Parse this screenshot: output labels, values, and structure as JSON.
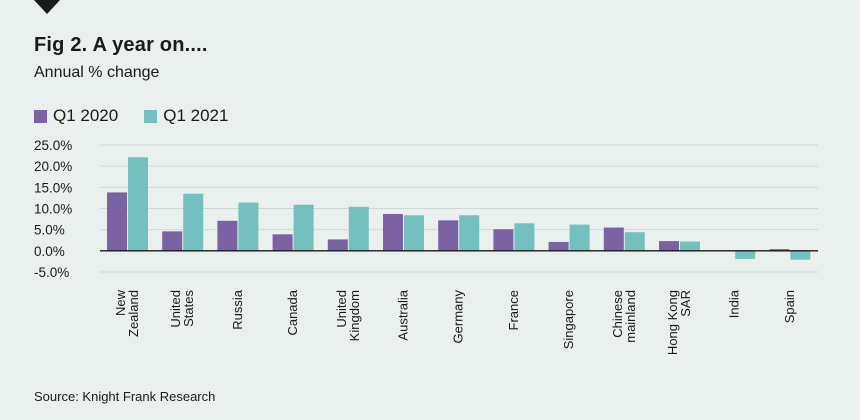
{
  "header": {
    "title": "Fig 2. A year on....",
    "subtitle": "Annual % change"
  },
  "source": "Source: Knight Frank Research",
  "colors": {
    "background": "#e9f0ed",
    "q1_2020": "#7b62a3",
    "q1_2021": "#73c0bf"
  },
  "chart_data": {
    "type": "bar",
    "title": "Fig 2. A year on....",
    "subtitle": "Annual % change",
    "legend_position": "top-left",
    "grid": true,
    "ylim": [
      -5,
      25
    ],
    "yticks": [
      "25.0%",
      "20.0%",
      "15.0%",
      "10.0%",
      "5.0%",
      "0.0%",
      "-5.0%"
    ],
    "ytick_values": [
      25,
      20,
      15,
      10,
      5,
      0,
      -5
    ],
    "categories": [
      [
        "New",
        "Zealand"
      ],
      [
        "United",
        "States"
      ],
      [
        "Russia"
      ],
      [
        "Canada"
      ],
      [
        "United",
        "Kingdom"
      ],
      [
        "Australia"
      ],
      [
        "Germany"
      ],
      [
        "France"
      ],
      [
        "Singapore"
      ],
      [
        "Chinese",
        "mainland"
      ],
      [
        "Hong Kong",
        "SAR"
      ],
      [
        "India"
      ],
      [
        "Spain"
      ]
    ],
    "series": [
      {
        "name": "Q1 2020",
        "color": "#7b62a3",
        "values": [
          13.8,
          4.6,
          7.1,
          3.9,
          2.7,
          8.7,
          7.2,
          5.1,
          2.1,
          5.5,
          2.3,
          0.0,
          0.4
        ]
      },
      {
        "name": "Q1 2021",
        "color": "#73c0bf",
        "values": [
          22.1,
          13.5,
          11.4,
          10.9,
          10.4,
          8.4,
          8.4,
          6.5,
          6.2,
          4.4,
          2.2,
          -1.9,
          -2.1
        ]
      }
    ]
  }
}
